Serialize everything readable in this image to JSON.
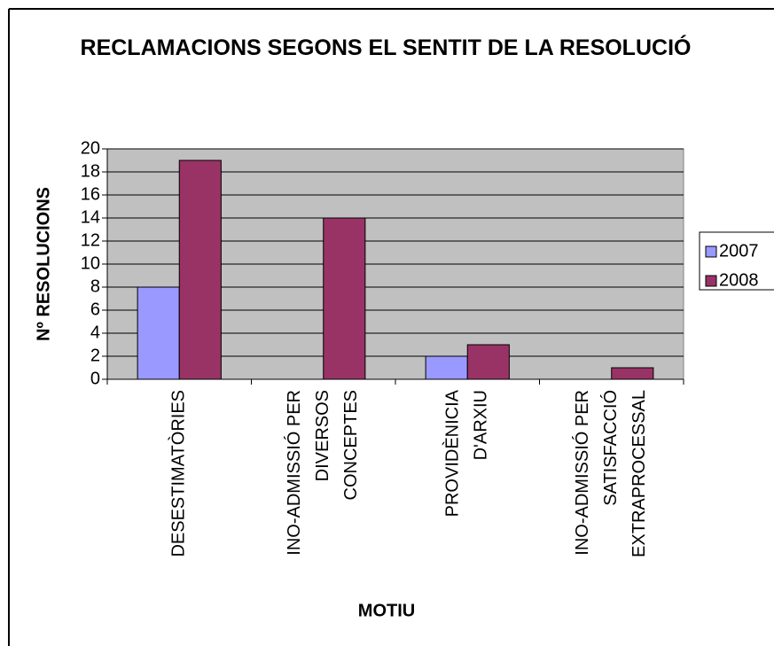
{
  "chart_data": {
    "type": "bar",
    "title": "RECLAMACIONS SEGONS EL SENTIT  DE LA RESOLUCIÓ",
    "x_label": "MOTIU",
    "y_label": "Nº RESOLUCIONS",
    "categories": [
      [
        "DESESTIMATÒRIES"
      ],
      [
        "INO-ADMISSIÓ PER",
        "DIVERSOS",
        "CONCEPTES"
      ],
      [
        "PROVIDÈNICIA",
        "D'ARXIU"
      ],
      [
        "INO-ADMISSIÓ PER",
        "SATISFACCIÓ",
        "EXTRAPROCESSAL"
      ]
    ],
    "series": [
      {
        "name": "2007",
        "color": "#9999ff",
        "values": [
          8,
          0,
          2,
          0
        ]
      },
      {
        "name": "2008",
        "color": "#993366",
        "values": [
          19,
          14,
          3,
          1
        ]
      }
    ],
    "ylim": [
      0,
      20
    ],
    "yticks": [
      0,
      2,
      4,
      6,
      8,
      10,
      12,
      14,
      16,
      18,
      20
    ],
    "grid": true,
    "plot_background": "#c0c0c0",
    "legend": "right"
  }
}
